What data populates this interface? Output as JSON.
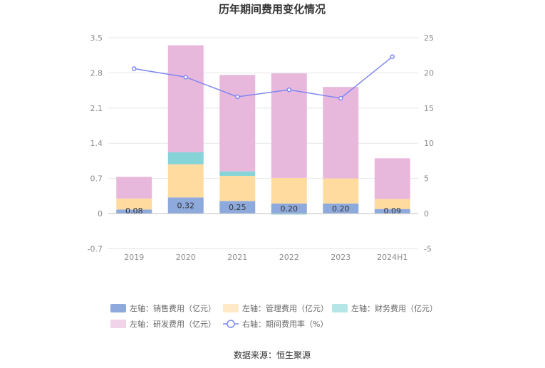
{
  "chart_data": {
    "type": "bar",
    "title": "历年期间费用变化情况",
    "categories": [
      "2019",
      "2020",
      "2021",
      "2022",
      "2023",
      "2024H1"
    ],
    "y_left": {
      "ticks": [
        "-0.7",
        "0",
        "0.7",
        "1.4",
        "2.1",
        "2.8",
        "3.5"
      ],
      "min": -0.7,
      "max": 3.5
    },
    "y_right": {
      "ticks": [
        "-5",
        "0",
        "5",
        "10",
        "15",
        "20",
        "25"
      ],
      "min": -5,
      "max": 25
    },
    "series": [
      {
        "name": "左轴：销售费用（亿元）",
        "kind": "bar",
        "axis": "left",
        "color": "#8eaadc",
        "values": [
          0.08,
          0.32,
          0.25,
          0.2,
          0.2,
          0.09
        ],
        "labels": [
          "0.08",
          "0.32",
          "0.25",
          "0.20",
          "0.20",
          "0.09"
        ]
      },
      {
        "name": "左轴：管理费用（亿元）",
        "kind": "bar",
        "axis": "left",
        "color": "#ffdba0",
        "values": [
          0.22,
          0.66,
          0.5,
          0.51,
          0.5,
          0.2
        ]
      },
      {
        "name": "左轴：财务费用（亿元）",
        "kind": "bar",
        "axis": "left",
        "color": "#86d3d8",
        "values": [
          0.0,
          0.24,
          0.09,
          -0.02,
          0.0,
          0.0
        ]
      },
      {
        "name": "左轴：研发费用（亿元）",
        "kind": "bar",
        "axis": "left",
        "color": "#e8b8dc",
        "values": [
          0.43,
          2.13,
          1.92,
          2.08,
          1.82,
          0.81
        ]
      },
      {
        "name": "右轴：期间费用率（%）",
        "kind": "line",
        "axis": "right",
        "color": "#7f86f2",
        "values": [
          20.6,
          19.4,
          16.6,
          17.6,
          16.4,
          22.3
        ]
      }
    ],
    "legend_position": "bottom",
    "grid": true
  },
  "source": "数据来源：恒生聚源"
}
